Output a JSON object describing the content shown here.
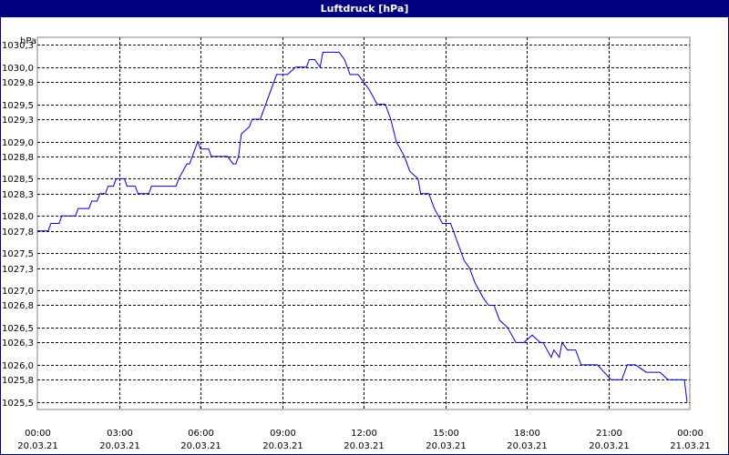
{
  "window": {
    "title": "Luftdruck [hPa]"
  },
  "chart_data": {
    "type": "line",
    "title": "Luftdruck [hPa]",
    "ylabel": "hPa",
    "xlabel": "",
    "ylim": [
      1025.4,
      1030.4
    ],
    "xlim": [
      0,
      24
    ],
    "grid": true,
    "line_color": "#0000c0",
    "y_ticks": [
      {
        "value": 1025.5,
        "label": "1025,5"
      },
      {
        "value": 1025.8,
        "label": "1025,8"
      },
      {
        "value": 1026.0,
        "label": "1026,0"
      },
      {
        "value": 1026.3,
        "label": "1026,3"
      },
      {
        "value": 1026.5,
        "label": "1026,5"
      },
      {
        "value": 1026.8,
        "label": "1026,8"
      },
      {
        "value": 1027.0,
        "label": "1027,0"
      },
      {
        "value": 1027.3,
        "label": "1027,3"
      },
      {
        "value": 1027.5,
        "label": "1027,5"
      },
      {
        "value": 1027.8,
        "label": "1027,8"
      },
      {
        "value": 1028.0,
        "label": "1028,0"
      },
      {
        "value": 1028.3,
        "label": "1028,3"
      },
      {
        "value": 1028.5,
        "label": "1028,5"
      },
      {
        "value": 1028.8,
        "label": "1028,8"
      },
      {
        "value": 1029.0,
        "label": "1029,0"
      },
      {
        "value": 1029.3,
        "label": "1029,3"
      },
      {
        "value": 1029.5,
        "label": "1029,5"
      },
      {
        "value": 1029.8,
        "label": "1029,8"
      },
      {
        "value": 1030.0,
        "label": "1030,0"
      },
      {
        "value": 1030.3,
        "label": "1030,3"
      }
    ],
    "x_ticks": [
      {
        "value": 0,
        "time": "00:00",
        "date": "20.03.21"
      },
      {
        "value": 3,
        "time": "03:00",
        "date": "20.03.21"
      },
      {
        "value": 6,
        "time": "06:00",
        "date": "20.03.21"
      },
      {
        "value": 9,
        "time": "09:00",
        "date": "20.03.21"
      },
      {
        "value": 12,
        "time": "12:00",
        "date": "20.03.21"
      },
      {
        "value": 15,
        "time": "15:00",
        "date": "20.03.21"
      },
      {
        "value": 18,
        "time": "18:00",
        "date": "20.03.21"
      },
      {
        "value": 21,
        "time": "21:00",
        "date": "20.03.21"
      },
      {
        "value": 24,
        "time": "00:00",
        "date": "21.03.21"
      }
    ],
    "series": [
      {
        "x": [
          0.0,
          0.4,
          0.5,
          0.8,
          0.9,
          1.4,
          1.5,
          1.9,
          2.0,
          2.2,
          2.3,
          2.5,
          2.6,
          2.8,
          2.9,
          3.2,
          3.3,
          3.6,
          3.7,
          4.1,
          4.2,
          5.1,
          5.2,
          5.5,
          5.6,
          5.9,
          6.0,
          6.3,
          6.4,
          6.9,
          7.0,
          7.2,
          7.3,
          7.4,
          7.5,
          7.8,
          7.9,
          8.2,
          8.4,
          8.8,
          8.9,
          9.2,
          9.5,
          9.9,
          10.0,
          10.1,
          10.2,
          10.4,
          10.5,
          10.7,
          10.9,
          11.1,
          11.3,
          11.5,
          11.8,
          12.0,
          12.2,
          12.5,
          12.8,
          13.0,
          13.2,
          13.5,
          13.7,
          14.0,
          14.1,
          14.4,
          14.6,
          14.9,
          15.2,
          15.5,
          15.7,
          15.9,
          16.1,
          16.4,
          16.6,
          16.8,
          17.0,
          17.3,
          17.6,
          17.9,
          18.2,
          18.5,
          18.6,
          18.9,
          19.0,
          19.2,
          19.3,
          19.5,
          19.6,
          19.8,
          20.0,
          20.1,
          20.3,
          20.5,
          20.6,
          21.1,
          21.5,
          21.7,
          22.0,
          22.4,
          22.6,
          22.9,
          23.2,
          23.6,
          23.8,
          23.9
        ],
        "y": [
          1027.8,
          1027.8,
          1027.9,
          1027.9,
          1028.0,
          1028.0,
          1028.1,
          1028.1,
          1028.2,
          1028.2,
          1028.3,
          1028.3,
          1028.4,
          1028.4,
          1028.5,
          1028.5,
          1028.4,
          1028.4,
          1028.3,
          1028.3,
          1028.4,
          1028.4,
          1028.5,
          1028.7,
          1028.7,
          1029.0,
          1028.9,
          1028.9,
          1028.8,
          1028.8,
          1028.8,
          1028.7,
          1028.7,
          1028.8,
          1029.1,
          1029.2,
          1029.3,
          1029.3,
          1029.5,
          1029.9,
          1029.9,
          1029.9,
          1030.0,
          1030.0,
          1030.1,
          1030.1,
          1030.1,
          1030.0,
          1030.2,
          1030.2,
          1030.2,
          1030.2,
          1030.1,
          1029.9,
          1029.9,
          1029.8,
          1029.7,
          1029.5,
          1029.5,
          1029.3,
          1029.0,
          1028.8,
          1028.6,
          1028.5,
          1028.3,
          1028.3,
          1028.1,
          1027.9,
          1027.9,
          1027.6,
          1027.4,
          1027.3,
          1027.1,
          1026.9,
          1026.8,
          1026.8,
          1026.6,
          1026.5,
          1026.3,
          1026.3,
          1026.4,
          1026.3,
          1026.3,
          1026.1,
          1026.2,
          1026.1,
          1026.3,
          1026.2,
          1026.2,
          1026.2,
          1026.0,
          1026.0,
          1026.0,
          1026.0,
          1026.0,
          1025.8,
          1025.8,
          1026.0,
          1026.0,
          1025.9,
          1025.9,
          1025.9,
          1025.8,
          1025.8,
          1025.8,
          1025.5
        ]
      }
    ]
  }
}
